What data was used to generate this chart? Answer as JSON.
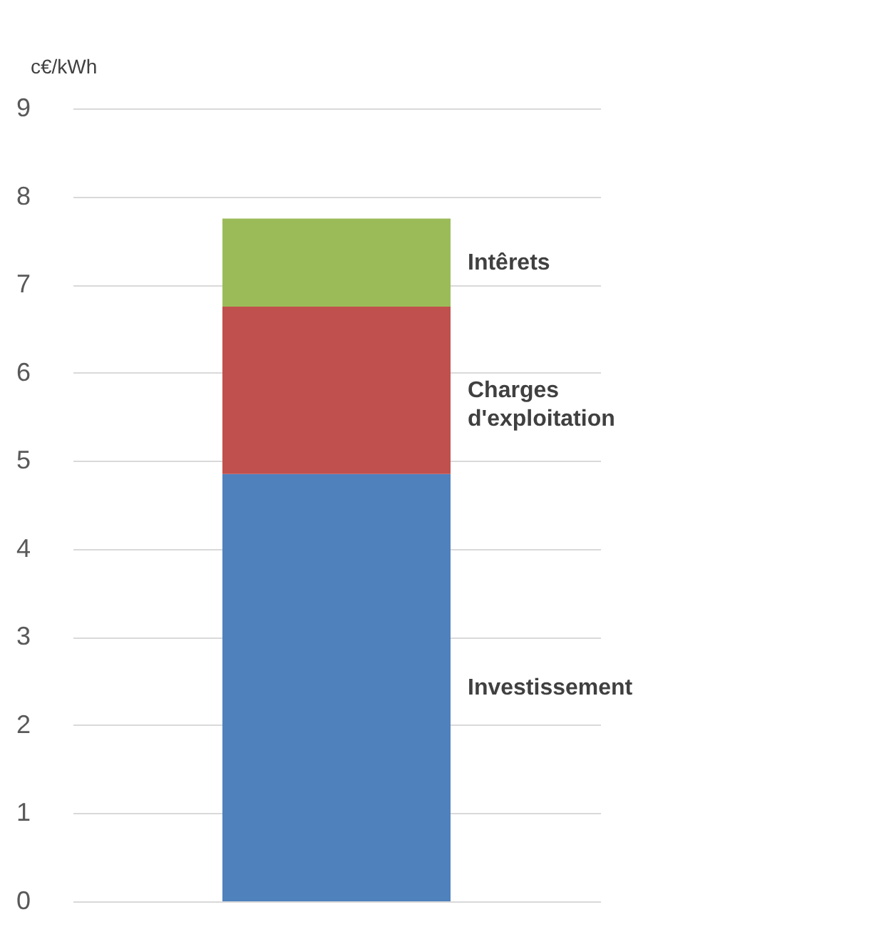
{
  "chart_data": {
    "type": "bar",
    "stacked": true,
    "ylabel": "c€/kWh",
    "categories": [
      null
    ],
    "series": [
      {
        "name": "Investissement",
        "color": "#4f81bd",
        "values": [
          4.85
        ]
      },
      {
        "name": "Charges d'exploitation",
        "color": "#c0504d",
        "values": [
          1.9
        ]
      },
      {
        "name": "Intêrets",
        "color": "#9bbb59",
        "values": [
          1.0
        ]
      }
    ],
    "ylim": [
      0,
      9
    ],
    "yticks": [
      0,
      1,
      2,
      3,
      4,
      5,
      6,
      7,
      8,
      9
    ],
    "grid": "y",
    "legend": false
  }
}
